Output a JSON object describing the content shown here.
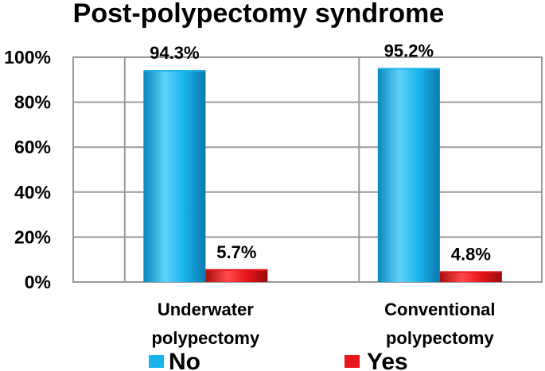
{
  "chart_data": {
    "type": "bar",
    "title": "Post-polypectomy syndrome",
    "categories": [
      "Underwater polypectomy",
      "Conventional polypectomy"
    ],
    "category_lines": [
      [
        "Underwater",
        "polypectomy"
      ],
      [
        "Conventional",
        "polypectomy"
      ]
    ],
    "series": [
      {
        "name": "No",
        "values": [
          94.3,
          95.2
        ],
        "labels": [
          "94.3%",
          "95.2%"
        ],
        "color": "#1ab4ec"
      },
      {
        "name": "Yes",
        "values": [
          5.7,
          4.8
        ],
        "labels": [
          "5.7%",
          "4.8%"
        ],
        "color": "#e8161a"
      }
    ],
    "yticks": [
      "0%",
      "20%",
      "40%",
      "60%",
      "80%",
      "100%"
    ],
    "ylim": [
      0,
      100
    ],
    "grid": true,
    "legend_position": "bottom"
  }
}
